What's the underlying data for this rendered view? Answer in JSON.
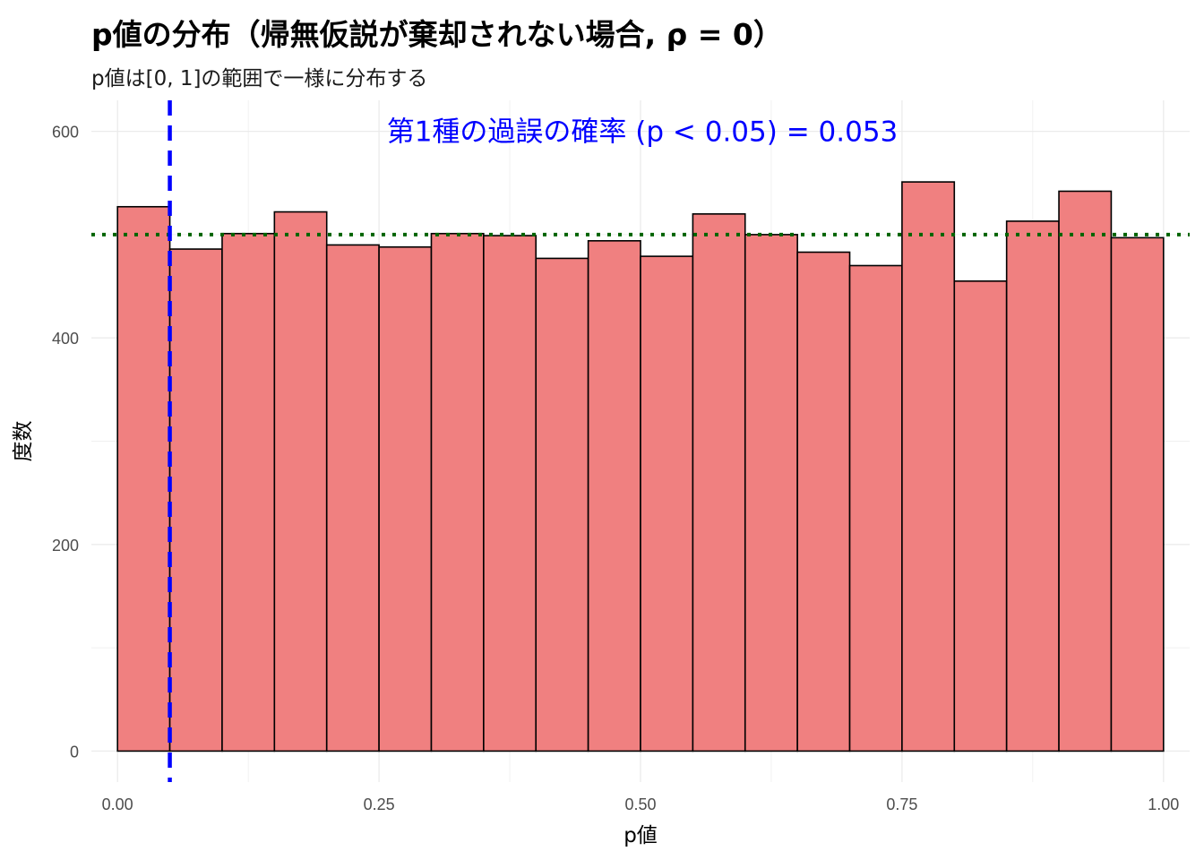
{
  "title": "p値の分布（帰無仮説が棄却されない場合, ρ = 0）",
  "subtitle": "p値は[0, 1]の範囲で一様に分布する",
  "colors": {
    "bar_fill": "#F08080",
    "bar_stroke": "#000000",
    "alpha_line": "#0000FF",
    "expected_line": "#006400",
    "annotation": "#0000FF",
    "grid": "#EBEBEB"
  },
  "chart_data": {
    "type": "bar",
    "title": "p値の分布（帰無仮説が棄却されない場合, ρ = 0）",
    "subtitle": "p値は[0, 1]の範囲で一様に分布する",
    "xlabel": "p値",
    "ylabel": "度数",
    "bin_width": 0.05,
    "bin_edges": [
      0,
      0.05,
      0.1,
      0.15,
      0.2,
      0.25,
      0.3,
      0.35,
      0.4,
      0.45,
      0.5,
      0.55,
      0.6,
      0.65,
      0.7,
      0.75,
      0.8,
      0.85,
      0.9,
      0.95,
      1.0
    ],
    "values": [
      527,
      486,
      501,
      522,
      490,
      488,
      501,
      499,
      477,
      494,
      479,
      520,
      500,
      483,
      470,
      551,
      455,
      513,
      542,
      497
    ],
    "xlim": [
      -0.025,
      1.025
    ],
    "ylim": [
      -30,
      630
    ],
    "x_ticks": [
      0,
      0.25,
      0.5,
      0.75,
      1.0
    ],
    "x_tick_labels": [
      "0.00",
      "0.25",
      "0.50",
      "0.75",
      "1.00"
    ],
    "y_ticks": [
      0,
      200,
      400,
      600
    ],
    "y_tick_labels": [
      "0",
      "200",
      "400",
      "600"
    ],
    "vline_x": 0.05,
    "hline_y": 500,
    "annotation": {
      "text": "第1種の過誤の確率 (p < 0.05) = 0.053",
      "x": 0.5,
      "y": 600
    },
    "grid": true,
    "legend": "none"
  }
}
